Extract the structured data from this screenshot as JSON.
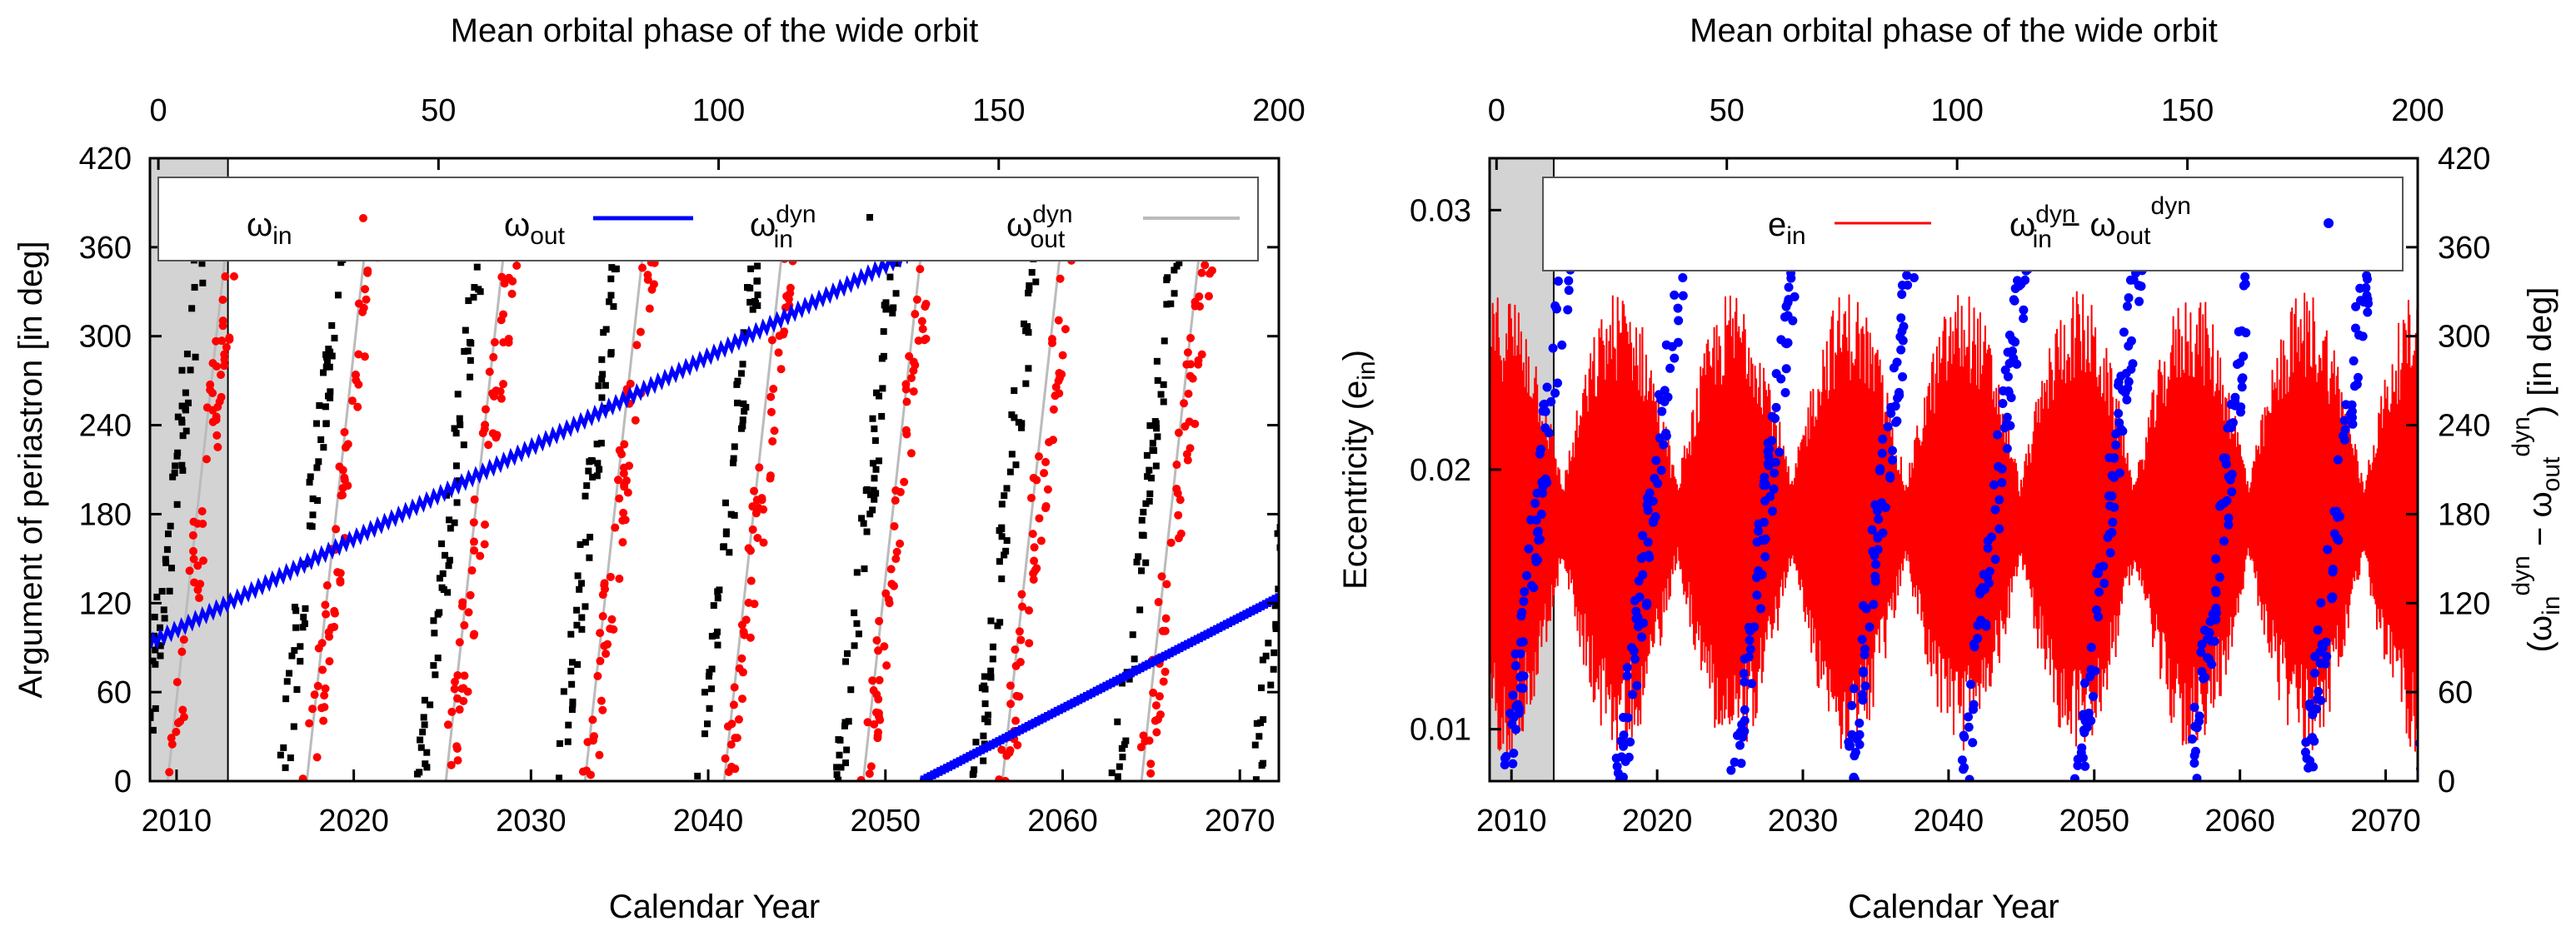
{
  "chart_data": [
    {
      "type": "scatter",
      "panel": "left",
      "title": "",
      "xlabel": "Calendar Year",
      "ylabel": "Argument of periastron [in deg]",
      "top_xlabel": "Mean orbital phase of the wide orbit",
      "xlim": [
        2008.5,
        2072.2
      ],
      "ylim": [
        0,
        420
      ],
      "top_xlim": [
        -1.5,
        200
      ],
      "x_ticks": [
        "2010",
        "2020",
        "2030",
        "2040",
        "2050",
        "2060",
        "2070"
      ],
      "y_ticks": [
        "0",
        "60",
        "120",
        "180",
        "240",
        "300",
        "360",
        "420"
      ],
      "top_x_ticks": [
        "0",
        "50",
        "100",
        "150",
        "200"
      ],
      "shaded_region": [
        2008.5,
        2012.9
      ],
      "legend_position": "top",
      "series": [
        {
          "name": "ω_in",
          "label": "ω",
          "sub": "in",
          "sup": "",
          "style": "points",
          "color": "#ff0000",
          "period_years": 7.85,
          "offset_year": 2009.7
        },
        {
          "name": "ω_out",
          "label": "ω",
          "sub": "out",
          "sup": "",
          "style": "line",
          "color": "#0000ff",
          "segments": [
            {
              "x": [
                2008.5,
                2052.0
              ],
              "y": [
                93,
                360
              ]
            },
            {
              "x": [
                2052.0,
                2072.2
              ],
              "y": [
                0,
                124
              ]
            }
          ]
        },
        {
          "name": "ω_in^dyn",
          "label": "ω",
          "sub": "in",
          "sup": "dyn",
          "style": "points",
          "color": "#000000",
          "period_years": 7.85,
          "offset_year": 2008.1
        },
        {
          "name": "ω_out^dyn",
          "label": "ω",
          "sub": "out",
          "sup": "dyn",
          "style": "line",
          "color": "#bbbbbb",
          "period_years": 7.85,
          "offset_year": 2009.5
        }
      ]
    },
    {
      "type": "line",
      "panel": "right",
      "title": "",
      "xlabel": "Calendar Year",
      "ylabel_left": "Eccentricity (e_in)",
      "ylabel_right": "(ω_in^dyn − ω_out^dyn) [in deg]",
      "top_xlabel": "Mean orbital phase of the wide orbit",
      "xlim": [
        2008.5,
        2072.2
      ],
      "ylim_left": [
        0.008,
        0.032
      ],
      "ylim_right": [
        0,
        420
      ],
      "top_xlim": [
        -1.5,
        200
      ],
      "x_ticks": [
        "2010",
        "2020",
        "2030",
        "2040",
        "2050",
        "2060",
        "2070"
      ],
      "y_ticks_left": [
        "0.01",
        "0.02",
        "0.03"
      ],
      "y_ticks_right": [
        "0",
        "60",
        "120",
        "180",
        "240",
        "300",
        "360",
        "420"
      ],
      "top_x_ticks": [
        "0",
        "50",
        "100",
        "150",
        "200"
      ],
      "shaded_region": [
        2008.5,
        2012.9
      ],
      "legend_position": "top",
      "series": [
        {
          "name": "e_in",
          "label": "e",
          "sub": "in",
          "sup": "",
          "style": "line",
          "color": "#ff0000",
          "mean": 0.018,
          "amplitude_range": [
            0.0015,
            0.009
          ],
          "envelope_period_years": 7.85
        },
        {
          "name": "ω_in^dyn − ω_out^dyn",
          "label": "ω",
          "sub": "in",
          "sup": "dyn",
          "label2": " − ω",
          "sub2": "out",
          "sup2": "dyn",
          "style": "points",
          "color": "#0000ff",
          "period_years": 7.85,
          "offset_year": 2009.6
        }
      ]
    }
  ],
  "labels": {
    "left_bottom": "Calendar Year",
    "left_top": "Mean orbital phase of the wide orbit",
    "left_y": "Argument of periastron [in deg]",
    "right_bottom": "Calendar Year",
    "right_top": "Mean orbital phase of the wide orbit",
    "right_yleft_main": "Eccentricity (e",
    "right_yleft_sub": "in",
    "right_yleft_end": ")",
    "right_yright": "(ω_in^dyn − ω_out^dyn) [in deg]"
  }
}
